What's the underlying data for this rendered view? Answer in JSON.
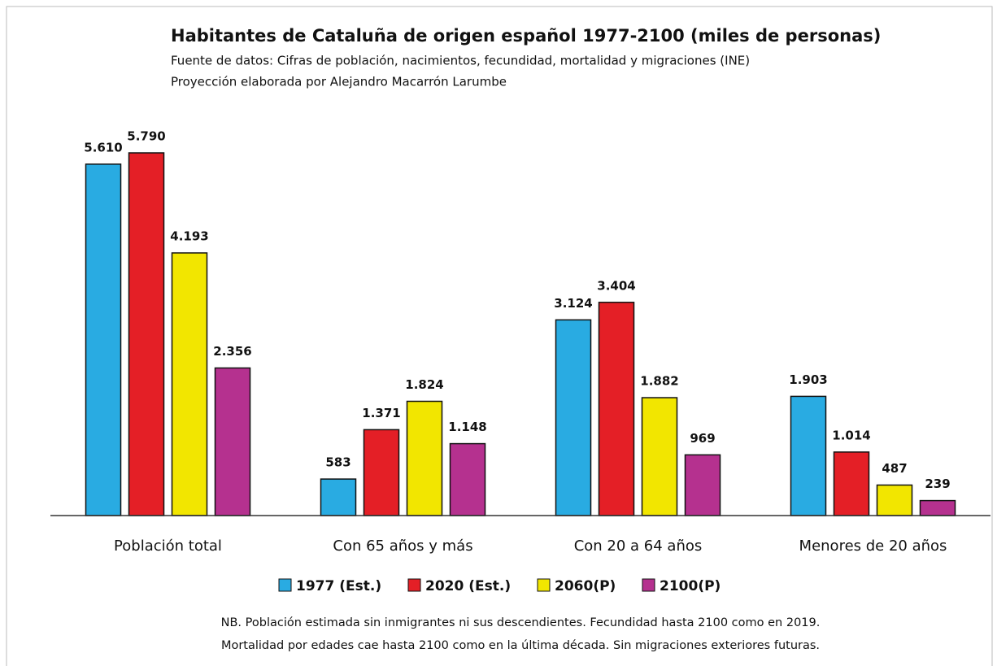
{
  "chart_data": {
    "type": "bar",
    "title": "Habitantes de Cataluña de origen español 1977-2100 (miles de personas)",
    "subtitle": [
      "Fuente de datos: Cifras de población, nacimientos, fecundidad, mortalidad y migraciones (INE)",
      "Proyección elaborada por Alejandro Macarrón Larumbe"
    ],
    "categories": [
      "Población total",
      "Con 65 años y más",
      "Con 20 a 64 años",
      "Menores de 20 años"
    ],
    "series": [
      {
        "name": "1977 (Est.)",
        "color": "#29abe2",
        "values": [
          5610,
          583,
          3124,
          1903
        ],
        "value_labels": [
          "5.610",
          "583",
          "3.124",
          "1.903"
        ]
      },
      {
        "name": "2020 (Est.)",
        "color": "#e41f26",
        "values": [
          5790,
          1371,
          3404,
          1014
        ],
        "value_labels": [
          "5.790",
          "1.371",
          "3.404",
          "1.014"
        ]
      },
      {
        "name": "2060(P)",
        "color": "#f2e600",
        "values": [
          4193,
          1824,
          1882,
          487
        ],
        "value_labels": [
          "4.193",
          "1.824",
          "1.882",
          "487"
        ]
      },
      {
        "name": "2100(P)",
        "color": "#b5318f",
        "values": [
          2356,
          1148,
          969,
          239
        ],
        "value_labels": [
          "2.356",
          "1.148",
          "969",
          "239"
        ]
      }
    ],
    "legend": "bottom",
    "notes": [
      "NB. Población estimada sin inmigrantes ni sus descendientes. Fecundidad hasta 2100 como en 2019.",
      "Mortalidad por edades cae hasta 2100 como en la última década. Sin migraciones exteriores futuras."
    ]
  }
}
